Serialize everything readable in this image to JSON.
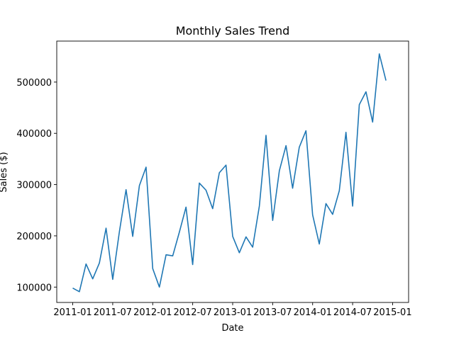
{
  "chart_data": {
    "type": "line",
    "title": "Monthly Sales Trend",
    "xlabel": "Date",
    "ylabel": "Sales ($)",
    "x_ticks": [
      "2011-01",
      "2011-07",
      "2012-01",
      "2012-07",
      "2013-01",
      "2013-07",
      "2014-01",
      "2014-07",
      "2015-01"
    ],
    "y_ticks": [
      100000,
      200000,
      300000,
      400000,
      500000
    ],
    "y_tick_labels": [
      "100000",
      "200000",
      "300000",
      "400000",
      "500000"
    ],
    "ylim": [
      70000,
      580000
    ],
    "grid": false,
    "color": "#1f77b4",
    "series": [
      {
        "x": [
          "2011-01",
          "2011-02",
          "2011-03",
          "2011-04",
          "2011-05",
          "2011-06",
          "2011-07",
          "2011-08",
          "2011-09",
          "2011-10",
          "2011-11",
          "2011-12",
          "2012-01",
          "2012-02",
          "2012-03",
          "2012-04",
          "2012-05",
          "2012-06",
          "2012-07",
          "2012-08",
          "2012-09",
          "2012-10",
          "2012-11",
          "2012-12",
          "2013-01",
          "2013-02",
          "2013-03",
          "2013-04",
          "2013-05",
          "2013-06",
          "2013-07",
          "2013-08",
          "2013-09",
          "2013-10",
          "2013-11",
          "2013-12",
          "2014-01",
          "2014-02",
          "2014-03",
          "2014-04",
          "2014-05",
          "2014-06",
          "2014-07",
          "2014-08",
          "2014-09",
          "2014-10",
          "2014-11",
          "2014-12"
        ],
        "values": [
          98000,
          91000,
          145000,
          116000,
          147000,
          215000,
          115000,
          208000,
          290000,
          199000,
          298000,
          334000,
          136000,
          100000,
          163000,
          161000,
          207000,
          256000,
          144000,
          303000,
          289000,
          253000,
          323000,
          338000,
          199000,
          167000,
          198000,
          178000,
          258000,
          396000,
          230000,
          327000,
          376000,
          293000,
          373000,
          405000,
          241000,
          184000,
          263000,
          242000,
          288000,
          402000,
          258000,
          456000,
          481000,
          422000,
          555000,
          503000
        ]
      }
    ]
  }
}
